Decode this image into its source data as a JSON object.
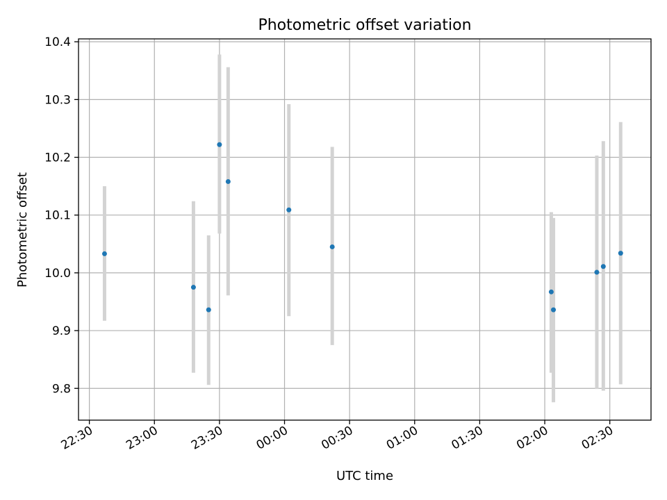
{
  "chart_data": {
    "type": "scatter",
    "title": "Photometric offset variation",
    "xlabel": "UTC time",
    "ylabel": "Photometric offset",
    "x_axis_kind": "time",
    "xlim": [
      "22:25",
      "02:49"
    ],
    "ylim": [
      9.745,
      10.405
    ],
    "xticks": [
      "22:30",
      "23:00",
      "23:30",
      "00:00",
      "00:30",
      "01:00",
      "01:30",
      "02:00",
      "02:30"
    ],
    "yticks": [
      9.8,
      9.9,
      10.0,
      10.1,
      10.2,
      10.3,
      10.4
    ],
    "ytick_labels": [
      "9.8",
      "9.9",
      "10.0",
      "10.1",
      "10.2",
      "10.3",
      "10.4"
    ],
    "grid": true,
    "marker_color": "#1f77b4",
    "errorbar_color": "#d3d3d3",
    "points": [
      {
        "t": "22:37",
        "y": 10.033,
        "ylow": 9.917,
        "yhigh": 10.15
      },
      {
        "t": "23:18",
        "y": 9.975,
        "ylow": 9.827,
        "yhigh": 10.124
      },
      {
        "t": "23:25",
        "y": 9.936,
        "ylow": 9.806,
        "yhigh": 10.065
      },
      {
        "t": "23:30",
        "y": 10.222,
        "ylow": 10.068,
        "yhigh": 10.378
      },
      {
        "t": "23:34",
        "y": 10.158,
        "ylow": 9.961,
        "yhigh": 10.356
      },
      {
        "t": "00:02",
        "y": 10.109,
        "ylow": 9.925,
        "yhigh": 10.292
      },
      {
        "t": "00:22",
        "y": 10.045,
        "ylow": 9.875,
        "yhigh": 10.218
      },
      {
        "t": "02:03",
        "y": 9.967,
        "ylow": 9.827,
        "yhigh": 10.105
      },
      {
        "t": "02:04",
        "y": 9.936,
        "ylow": 9.776,
        "yhigh": 10.095
      },
      {
        "t": "02:24",
        "y": 10.001,
        "ylow": 9.799,
        "yhigh": 10.203
      },
      {
        "t": "02:27",
        "y": 10.011,
        "ylow": 9.796,
        "yhigh": 10.228
      },
      {
        "t": "02:35",
        "y": 10.034,
        "ylow": 9.807,
        "yhigh": 10.261
      }
    ]
  }
}
